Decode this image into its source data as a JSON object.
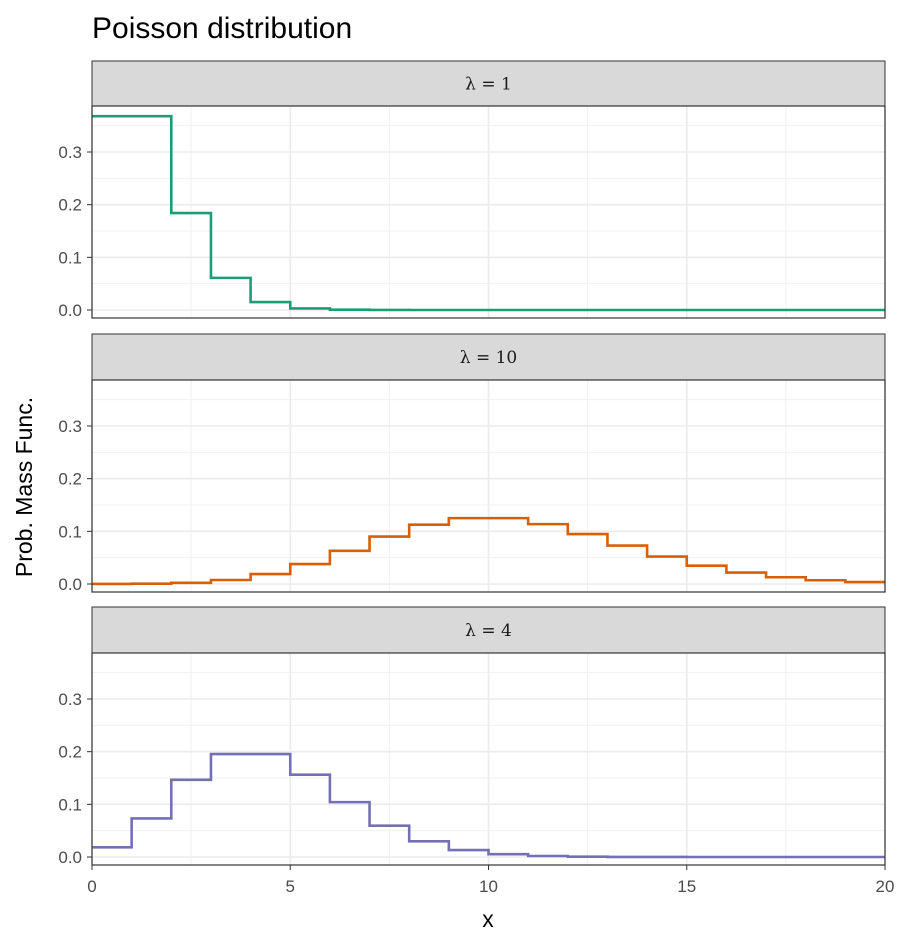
{
  "chart_data": {
    "type": "line",
    "style": "step",
    "title": "Poisson distribution",
    "xlabel": "x",
    "ylabel": "Prob. Mass Func.",
    "xlim": [
      0,
      20
    ],
    "ylim": [
      0,
      0.37
    ],
    "x_ticks": [
      0,
      5,
      10,
      15,
      20
    ],
    "y_ticks": [
      0.0,
      0.1,
      0.2,
      0.3
    ],
    "y_tick_labels": [
      "0.0",
      "0.1",
      "0.2",
      "0.3"
    ],
    "grid": true,
    "x": [
      0,
      1,
      2,
      3,
      4,
      5,
      6,
      7,
      8,
      9,
      10,
      11,
      12,
      13,
      14,
      15,
      16,
      17,
      18,
      19,
      20
    ],
    "panels": [
      {
        "label": "λ = 1",
        "color": "#1b9e77",
        "values": [
          0.368,
          0.368,
          0.184,
          0.061,
          0.015,
          0.003,
          0.0005,
          0.0001,
          0,
          0,
          0,
          0,
          0,
          0,
          0,
          0,
          0,
          0,
          0,
          0,
          0
        ]
      },
      {
        "label": "λ = 10",
        "color": "#d95f02",
        "values": [
          5e-05,
          0.0005,
          0.0023,
          0.0076,
          0.0189,
          0.0378,
          0.0631,
          0.0901,
          0.1126,
          0.1251,
          0.1251,
          0.1137,
          0.0948,
          0.0729,
          0.0521,
          0.0347,
          0.0217,
          0.0128,
          0.0071,
          0.0037,
          0.0019
        ]
      },
      {
        "label": "λ = 4",
        "color": "#7570b3",
        "values": [
          0.0183,
          0.0733,
          0.1465,
          0.1954,
          0.1954,
          0.1563,
          0.1042,
          0.0595,
          0.0298,
          0.0132,
          0.0053,
          0.0019,
          0.0006,
          0.0002,
          5e-05,
          1e-05,
          0,
          0,
          0,
          0,
          0
        ]
      }
    ]
  }
}
